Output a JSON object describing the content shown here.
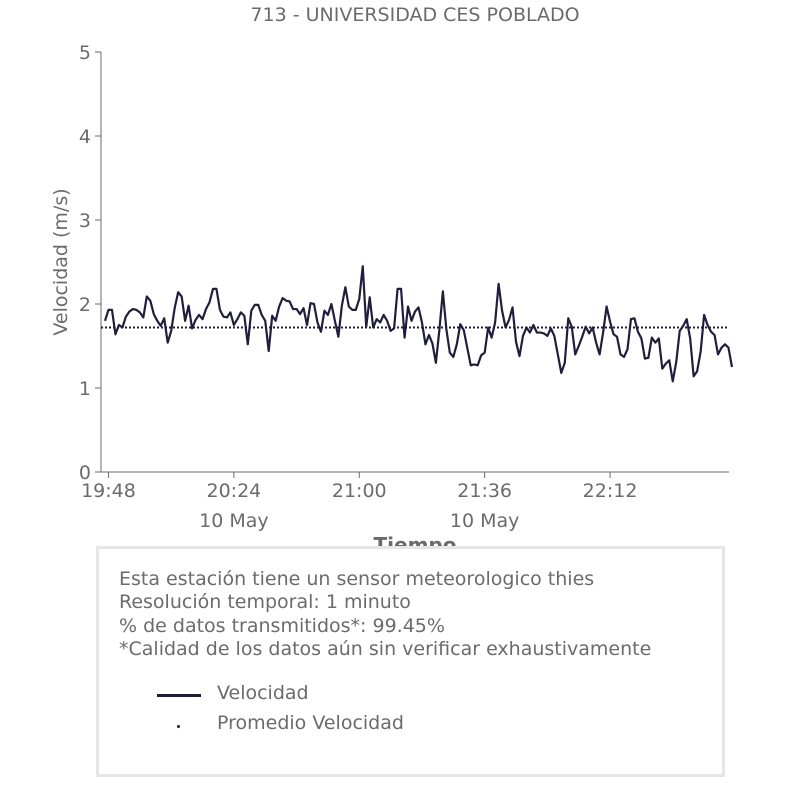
{
  "chart_data": {
    "type": "line",
    "title": "713 - UNIVERSIDAD CES POBLADO",
    "ylabel": "Velocidad (m/s)",
    "xlabel": "Tiempo",
    "ylim": [
      0,
      5
    ],
    "yticks": [
      "0",
      "1",
      "2",
      "3",
      "4",
      "5"
    ],
    "xticks": [
      {
        "time": "19:48",
        "label": "19:48",
        "sublabel": ""
      },
      {
        "time": "20:24",
        "label": "20:24",
        "sublabel": "10 May"
      },
      {
        "time": "21:00",
        "label": "21:00",
        "sublabel": ""
      },
      {
        "time": "21:36",
        "label": "21:36",
        "sublabel": "10 May"
      },
      {
        "time": "22:12",
        "label": "22:12",
        "sublabel": ""
      }
    ],
    "x_range": [
      "19:47",
      "22:45"
    ],
    "series": [
      {
        "name": "Velocidad",
        "color": "#1f1f3d",
        "style": "solid",
        "x_start": "19:47",
        "x_step_minutes": 1,
        "values": [
          1.8,
          1.93,
          1.93,
          1.64,
          1.75,
          1.72,
          1.85,
          1.91,
          1.94,
          1.93,
          1.9,
          1.84,
          2.09,
          2.04,
          1.88,
          1.8,
          1.74,
          1.83,
          1.54,
          1.68,
          1.95,
          2.14,
          2.09,
          1.8,
          1.98,
          1.71,
          1.81,
          1.87,
          1.82,
          1.94,
          2.02,
          2.18,
          2.18,
          1.93,
          1.85,
          1.84,
          1.9,
          1.75,
          1.82,
          1.9,
          1.86,
          1.52,
          1.92,
          1.99,
          1.99,
          1.87,
          1.8,
          1.44,
          1.86,
          1.8,
          1.97,
          2.07,
          2.04,
          2.03,
          1.94,
          1.94,
          1.88,
          1.95,
          1.75,
          2.01,
          2.0,
          1.78,
          1.67,
          1.92,
          1.87,
          2.0,
          1.8,
          1.61,
          1.98,
          2.2,
          1.97,
          1.93,
          1.93,
          2.06,
          2.45,
          1.73,
          2.08,
          1.72,
          1.82,
          1.78,
          1.87,
          1.8,
          1.68,
          1.71,
          2.18,
          2.18,
          1.6,
          1.97,
          1.8,
          1.91,
          1.96,
          1.78,
          1.52,
          1.63,
          1.53,
          1.3,
          1.69,
          2.15,
          1.7,
          1.42,
          1.37,
          1.52,
          1.76,
          1.69,
          1.48,
          1.27,
          1.28,
          1.27,
          1.39,
          1.42,
          1.72,
          1.6,
          1.78,
          2.24,
          1.92,
          1.72,
          1.81,
          1.96,
          1.55,
          1.38,
          1.62,
          1.72,
          1.66,
          1.75,
          1.66,
          1.66,
          1.65,
          1.62,
          1.71,
          1.62,
          1.4,
          1.18,
          1.3,
          1.83,
          1.73,
          1.4,
          1.5,
          1.61,
          1.73,
          1.65,
          1.72,
          1.54,
          1.4,
          1.66,
          1.97,
          1.79,
          1.64,
          1.61,
          1.4,
          1.37,
          1.46,
          1.82,
          1.83,
          1.67,
          1.59,
          1.35,
          1.36,
          1.6,
          1.54,
          1.59,
          1.23,
          1.29,
          1.33,
          1.08,
          1.31,
          1.68,
          1.74,
          1.82,
          1.59,
          1.14,
          1.2,
          1.43,
          1.87,
          1.75,
          1.67,
          1.63,
          1.4,
          1.48,
          1.52,
          1.48,
          1.25
        ]
      },
      {
        "name": "Promedio Velocidad",
        "color": "#1f1f3d",
        "style": "dotted",
        "constant": 1.72
      }
    ],
    "grid": false,
    "legend_position": "bottom-left (inside info box)"
  },
  "info": {
    "lines": [
      "Esta estación tiene un sensor meteorologico thies",
      "Resolución temporal: 1 minuto",
      "% de datos transmitidos*: 99.45%",
      "*Calidad de los datos aún sin verificar exhaustivamente"
    ]
  },
  "legend": {
    "items": [
      {
        "label": "Velocidad",
        "marker": "line"
      },
      {
        "label": "Promedio Velocidad",
        "marker": "dot"
      }
    ]
  }
}
